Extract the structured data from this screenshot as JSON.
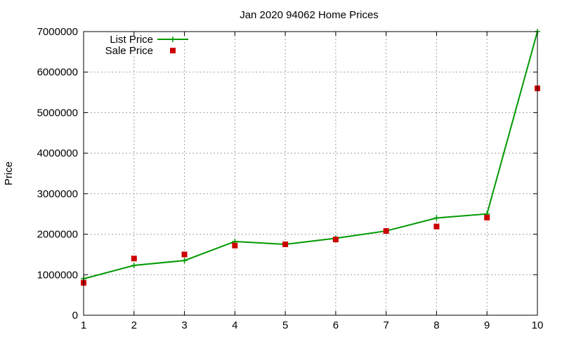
{
  "chart_data": {
    "type": "line",
    "title": "Jan 2020 94062 Home Prices",
    "xlabel": "",
    "ylabel": "Price",
    "x": [
      1,
      2,
      3,
      4,
      5,
      6,
      7,
      8,
      9,
      10
    ],
    "xlim": [
      1,
      10
    ],
    "ylim": [
      0,
      7000000
    ],
    "xticks": [
      "1",
      "2",
      "3",
      "4",
      "5",
      "6",
      "7",
      "8",
      "9",
      "10"
    ],
    "yticks": [
      "0",
      "1000000",
      "2000000",
      "3000000",
      "4000000",
      "5000000",
      "6000000",
      "7000000"
    ],
    "grid": true,
    "legend_position": "top-left",
    "series": [
      {
        "name": "List Price",
        "style": "line-with-plus-markers",
        "color": "#009900",
        "values": [
          900000,
          1230000,
          1350000,
          1820000,
          1750000,
          1900000,
          2080000,
          2400000,
          2500000,
          7000000
        ]
      },
      {
        "name": "Sale Price",
        "style": "square-markers",
        "color": "#cc0000",
        "values": [
          800000,
          1400000,
          1500000,
          1720000,
          1750000,
          1870000,
          2080000,
          2190000,
          2410000,
          5600000
        ]
      }
    ]
  }
}
